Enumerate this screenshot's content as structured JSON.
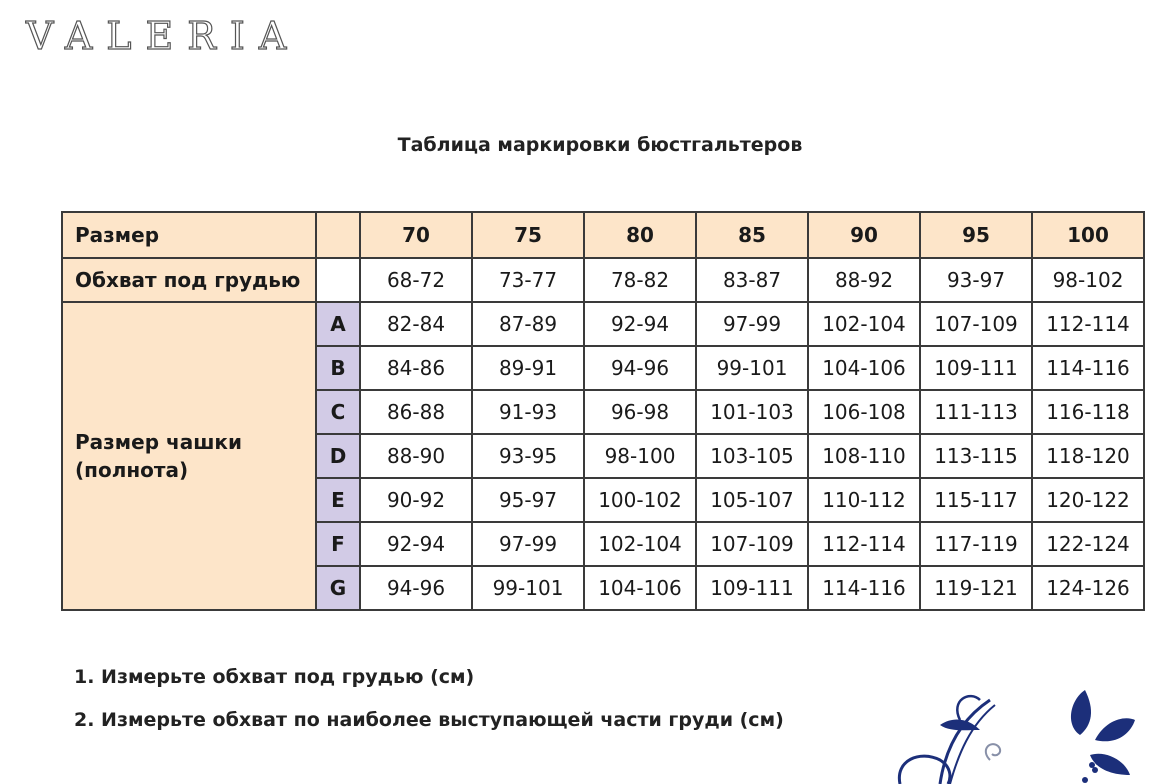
{
  "logo": "VALERIA",
  "title": "Таблица маркировки бюстгальтеров",
  "table": {
    "size_label": "Размер",
    "sizes": [
      "70",
      "75",
      "80",
      "85",
      "90",
      "95",
      "100"
    ],
    "underbust_label": "Обхват под грудью",
    "underbust": [
      "68-72",
      "73-77",
      "78-82",
      "83-87",
      "88-92",
      "93-97",
      "98-102"
    ],
    "cup_label_line1": "Размер чашки",
    "cup_label_line2": "(полнота)",
    "cups": [
      {
        "letter": "A",
        "values": [
          "82-84",
          "87-89",
          "92-94",
          "97-99",
          "102-104",
          "107-109",
          "112-114"
        ]
      },
      {
        "letter": "B",
        "values": [
          "84-86",
          "89-91",
          "94-96",
          "99-101",
          "104-106",
          "109-111",
          "114-116"
        ]
      },
      {
        "letter": "C",
        "values": [
          "86-88",
          "91-93",
          "96-98",
          "101-103",
          "106-108",
          "111-113",
          "116-118"
        ]
      },
      {
        "letter": "D",
        "values": [
          "88-90",
          "93-95",
          "98-100",
          "103-105",
          "108-110",
          "113-115",
          "118-120"
        ]
      },
      {
        "letter": "E",
        "values": [
          "90-92",
          "95-97",
          "100-102",
          "105-107",
          "110-112",
          "115-117",
          "120-122"
        ]
      },
      {
        "letter": "F",
        "values": [
          "92-94",
          "97-99",
          "102-104",
          "107-109",
          "112-114",
          "117-119",
          "122-124"
        ]
      },
      {
        "letter": "G",
        "values": [
          "94-96",
          "99-101",
          "104-106",
          "109-111",
          "114-116",
          "119-121",
          "124-126"
        ]
      }
    ]
  },
  "notes": [
    "1. Измерьте обхват под грудью (см)",
    "2. Измерьте обхват по наиболее выступающей части груди (см)"
  ],
  "colors": {
    "header_bg": "#fde5c9",
    "cup_letter_bg": "#d2cbe6",
    "ornament": "#1c2f7a"
  }
}
